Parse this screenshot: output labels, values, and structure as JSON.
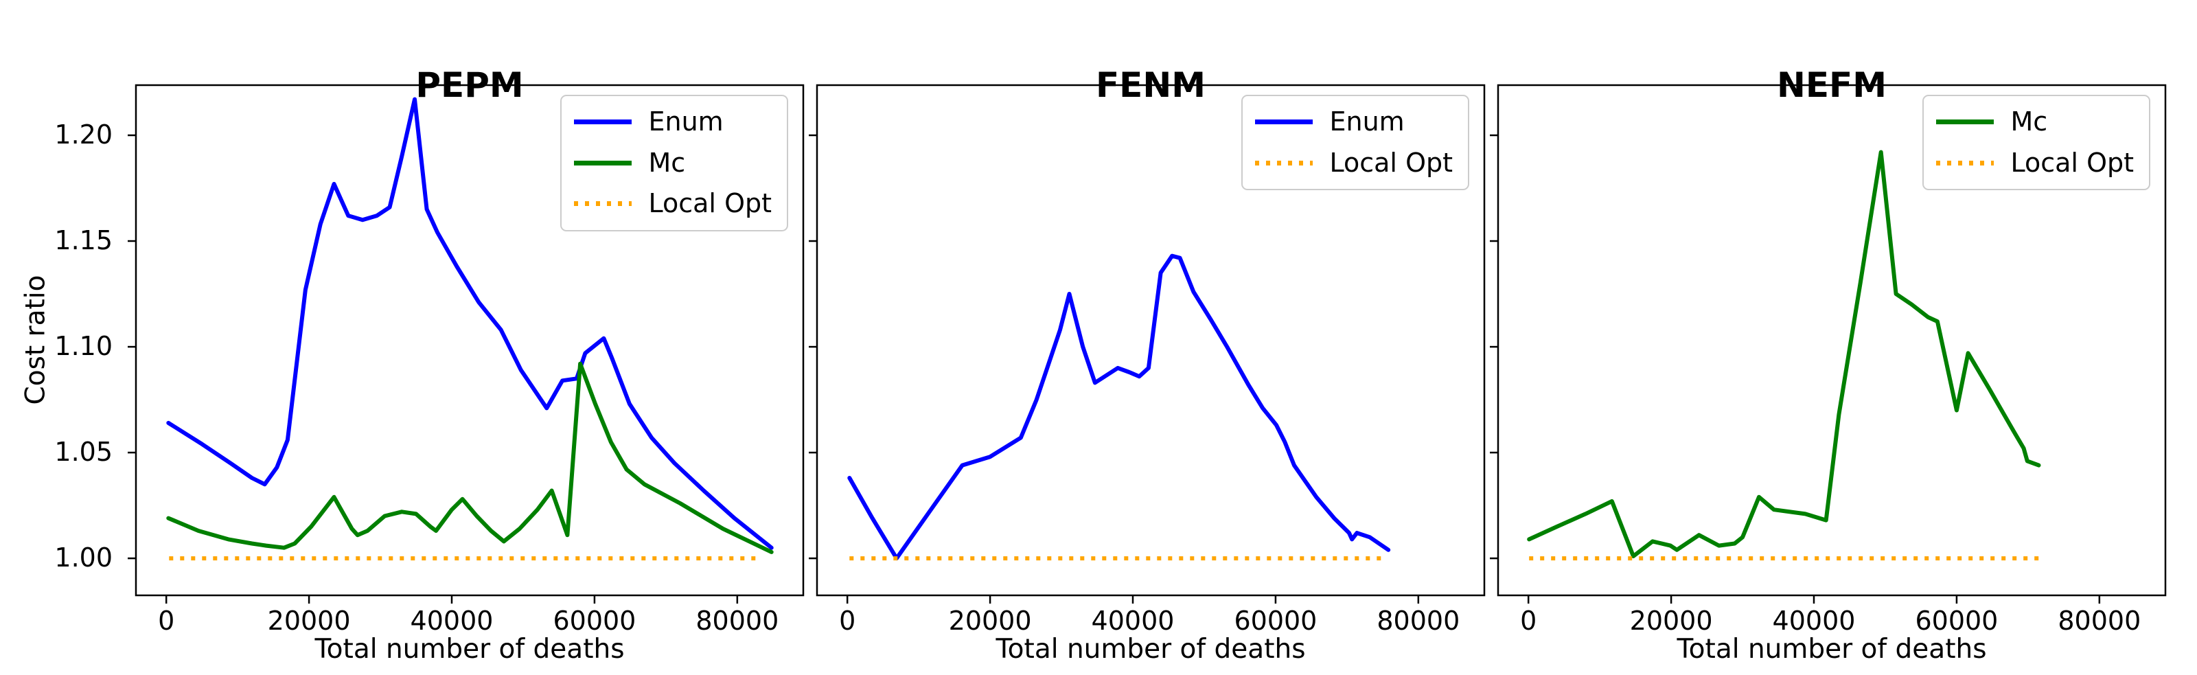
{
  "figure": {
    "xlabel": "Total number of deaths",
    "ylabel": "Cost ratio",
    "background": "#ffffff",
    "text_color": "#000000",
    "spine_color": "#000000",
    "colors": {
      "blue": "#0000ff",
      "green": "#008000",
      "orange": "#ffa500"
    }
  },
  "chart_data": [
    {
      "type": "line",
      "title": "PEPM",
      "xlabel": "Total number of deaths",
      "ylabel": "Cost ratio",
      "grid": false,
      "legend_position": "upper right",
      "xlim": [
        -4250,
        89250
      ],
      "ylim": [
        0.9825,
        1.2237
      ],
      "xticks": {
        "values": [
          0,
          20000,
          40000,
          60000,
          80000
        ],
        "labels": [
          "0",
          "20000",
          "40000",
          "60000",
          "80000"
        ]
      },
      "yticks": {
        "values": [
          1.0,
          1.05,
          1.1,
          1.15,
          1.2
        ],
        "labels": [
          "1.00",
          "1.05",
          "1.10",
          "1.15",
          "1.20"
        ],
        "show_labels": true
      },
      "series": [
        {
          "name": "Enum",
          "color": "blue",
          "style": "solid",
          "points": [
            [
              300,
              1.064
            ],
            [
              5000,
              1.054
            ],
            [
              9000,
              1.045
            ],
            [
              12000,
              1.038
            ],
            [
              13800,
              1.035
            ],
            [
              15500,
              1.043
            ],
            [
              17000,
              1.056
            ],
            [
              19500,
              1.127
            ],
            [
              21600,
              1.158
            ],
            [
              23500,
              1.177
            ],
            [
              25500,
              1.162
            ],
            [
              27500,
              1.16
            ],
            [
              29500,
              1.162
            ],
            [
              31300,
              1.166
            ],
            [
              33000,
              1.19
            ],
            [
              34800,
              1.217
            ],
            [
              36500,
              1.165
            ],
            [
              38000,
              1.154
            ],
            [
              40700,
              1.138
            ],
            [
              43800,
              1.121
            ],
            [
              46900,
              1.108
            ],
            [
              49700,
              1.089
            ],
            [
              53300,
              1.071
            ],
            [
              55500,
              1.084
            ],
            [
              57500,
              1.085
            ],
            [
              58700,
              1.097
            ],
            [
              61300,
              1.104
            ],
            [
              62400,
              1.095
            ],
            [
              64900,
              1.073
            ],
            [
              68000,
              1.057
            ],
            [
              71200,
              1.045
            ],
            [
              75300,
              1.032
            ],
            [
              79600,
              1.019
            ],
            [
              84800,
              1.005
            ]
          ]
        },
        {
          "name": "Mc",
          "color": "green",
          "style": "solid",
          "points": [
            [
              300,
              1.019
            ],
            [
              4500,
              1.013
            ],
            [
              8700,
              1.009
            ],
            [
              12000,
              1.007
            ],
            [
              14000,
              1.006
            ],
            [
              16500,
              1.005
            ],
            [
              18000,
              1.007
            ],
            [
              20300,
              1.015
            ],
            [
              23500,
              1.029
            ],
            [
              26000,
              1.014
            ],
            [
              26800,
              1.011
            ],
            [
              28200,
              1.013
            ],
            [
              30600,
              1.02
            ],
            [
              33000,
              1.022
            ],
            [
              35000,
              1.021
            ],
            [
              37000,
              1.015
            ],
            [
              37800,
              1.013
            ],
            [
              40000,
              1.023
            ],
            [
              41500,
              1.028
            ],
            [
              43500,
              1.02
            ],
            [
              45500,
              1.013
            ],
            [
              47300,
              1.008
            ],
            [
              49500,
              1.014
            ],
            [
              52000,
              1.023
            ],
            [
              54000,
              1.032
            ],
            [
              56200,
              1.011
            ],
            [
              58000,
              1.092
            ],
            [
              60100,
              1.073
            ],
            [
              62300,
              1.055
            ],
            [
              64500,
              1.042
            ],
            [
              67000,
              1.035
            ],
            [
              72000,
              1.026
            ],
            [
              78000,
              1.014
            ],
            [
              84800,
              1.003
            ]
          ]
        },
        {
          "name": "Local Opt",
          "color": "orange",
          "style": "dotted",
          "points": [
            [
              400,
              1.0
            ],
            [
              83000,
              1.0
            ]
          ]
        }
      ]
    },
    {
      "type": "line",
      "title": "FENM",
      "xlabel": "Total number of deaths",
      "grid": false,
      "legend_position": "upper right",
      "xlim": [
        -4250,
        89250
      ],
      "ylim": [
        0.9825,
        1.2237
      ],
      "xticks": {
        "values": [
          0,
          20000,
          40000,
          60000,
          80000
        ],
        "labels": [
          "0",
          "20000",
          "40000",
          "60000",
          "80000"
        ]
      },
      "yticks": {
        "values": [
          1.0,
          1.05,
          1.1,
          1.15,
          1.2
        ],
        "labels": [
          "1.00",
          "1.05",
          "1.10",
          "1.15",
          "1.20"
        ],
        "show_labels": false
      },
      "series": [
        {
          "name": "Enum",
          "color": "blue",
          "style": "solid",
          "points": [
            [
              300,
              1.038
            ],
            [
              3500,
              1.019
            ],
            [
              6900,
              1.0
            ],
            [
              11500,
              1.022
            ],
            [
              16100,
              1.044
            ],
            [
              20000,
              1.048
            ],
            [
              24300,
              1.057
            ],
            [
              26500,
              1.075
            ],
            [
              29800,
              1.108
            ],
            [
              31100,
              1.125
            ],
            [
              33000,
              1.1
            ],
            [
              34700,
              1.083
            ],
            [
              37900,
              1.09
            ],
            [
              39500,
              1.088
            ],
            [
              40900,
              1.086
            ],
            [
              42200,
              1.09
            ],
            [
              43900,
              1.135
            ],
            [
              45500,
              1.143
            ],
            [
              46600,
              1.142
            ],
            [
              48500,
              1.126
            ],
            [
              50900,
              1.113
            ],
            [
              53200,
              1.1
            ],
            [
              56200,
              1.082
            ],
            [
              58200,
              1.071
            ],
            [
              60100,
              1.063
            ],
            [
              61300,
              1.055
            ],
            [
              62600,
              1.044
            ],
            [
              65700,
              1.029
            ],
            [
              68200,
              1.019
            ],
            [
              70300,
              1.012
            ],
            [
              70700,
              1.009
            ],
            [
              71400,
              1.012
            ],
            [
              73200,
              1.01
            ],
            [
              75800,
              1.004
            ]
          ]
        },
        {
          "name": "Local Opt",
          "color": "orange",
          "style": "dotted",
          "points": [
            [
              300,
              1.0
            ],
            [
              75500,
              1.0
            ]
          ]
        }
      ]
    },
    {
      "type": "line",
      "title": "NEFM",
      "xlabel": "Total number of deaths",
      "grid": false,
      "legend_position": "upper right",
      "xlim": [
        -4250,
        89250
      ],
      "ylim": [
        0.9825,
        1.2237
      ],
      "xticks": {
        "values": [
          0,
          20000,
          40000,
          60000,
          80000
        ],
        "labels": [
          "0",
          "20000",
          "40000",
          "60000",
          "80000"
        ]
      },
      "yticks": {
        "values": [
          1.0,
          1.05,
          1.1,
          1.15,
          1.2
        ],
        "labels": [
          "1.00",
          "1.05",
          "1.10",
          "1.15",
          "1.20"
        ],
        "show_labels": false
      },
      "series": [
        {
          "name": "Mc",
          "color": "green",
          "style": "solid",
          "points": [
            [
              100,
              1.009
            ],
            [
              4000,
              1.015
            ],
            [
              8000,
              1.021
            ],
            [
              11700,
              1.027
            ],
            [
              14700,
              1.001
            ],
            [
              17400,
              1.008
            ],
            [
              19900,
              1.006
            ],
            [
              20800,
              1.004
            ],
            [
              23900,
              1.011
            ],
            [
              26700,
              1.006
            ],
            [
              28900,
              1.007
            ],
            [
              30000,
              1.01
            ],
            [
              32300,
              1.029
            ],
            [
              34400,
              1.023
            ],
            [
              38800,
              1.021
            ],
            [
              41700,
              1.018
            ],
            [
              43500,
              1.068
            ],
            [
              46500,
              1.13
            ],
            [
              49400,
              1.192
            ],
            [
              51500,
              1.125
            ],
            [
              53700,
              1.12
            ],
            [
              56000,
              1.114
            ],
            [
              57300,
              1.112
            ],
            [
              60000,
              1.07
            ],
            [
              61600,
              1.097
            ],
            [
              64600,
              1.08
            ],
            [
              68000,
              1.06
            ],
            [
              69400,
              1.052
            ],
            [
              69900,
              1.046
            ],
            [
              71500,
              1.044
            ]
          ]
        },
        {
          "name": "Local Opt",
          "color": "orange",
          "style": "dotted",
          "points": [
            [
              100,
              1.0
            ],
            [
              71500,
              1.0
            ]
          ]
        }
      ]
    }
  ]
}
